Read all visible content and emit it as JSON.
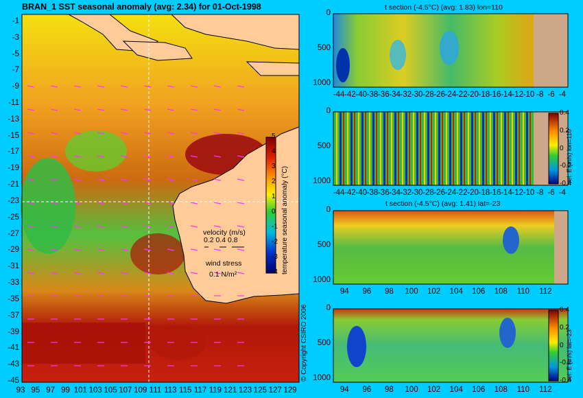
{
  "map": {
    "title": "BRAN_1  SST seasonal anomaly  (avg: 2.34)  for 01-Oct-1998",
    "lat_labels": [
      "-1",
      "-3",
      "-5",
      "-7",
      "-9",
      "-11",
      "-13",
      "-15",
      "-17",
      "-19",
      "-21",
      "-23",
      "-25",
      "-27",
      "-29",
      "-31",
      "-33",
      "-35",
      "-37",
      "-39",
      "-41",
      "-43",
      "-45"
    ],
    "lon_labels": [
      "93",
      "95",
      "97",
      "99",
      "101",
      "103",
      "105",
      "107",
      "109",
      "111",
      "113",
      "115",
      "117",
      "119",
      "121",
      "123",
      "125",
      "127",
      "129"
    ],
    "colorbar_ticks": [
      "5",
      "4",
      "3",
      "2",
      "1",
      "0",
      "-1",
      "-2",
      "-3",
      "-4"
    ],
    "colorbar_label": "temperature seasonal anomaly (°C)",
    "velocity_title": "velocity (m/s)",
    "velocity_values": "0.2 0.4 0.8",
    "wind_title": "wind stress",
    "wind_value": "0.1 N/m²",
    "copyright": "© Copyright CSIRO 2006"
  },
  "panel1": {
    "title": "t section (-4.5°C) (avg: 1.83) lon=110",
    "x_labels": [
      "-44",
      "-42",
      "-40",
      "-38",
      "-36",
      "-34",
      "-32",
      "-30",
      "-28",
      "-26",
      "-24",
      "-22",
      "-20",
      "-18",
      "-16",
      "-14",
      "-12",
      "-10",
      "-8",
      "-6",
      "-4"
    ],
    "y_labels": [
      "0",
      "500",
      "1000"
    ]
  },
  "panel2": {
    "title": "",
    "x_labels": [
      "-44",
      "-42",
      "-40",
      "-38",
      "-36",
      "-34",
      "-32",
      "-30",
      "-28",
      "-26",
      "-24",
      "-22",
      "-20",
      "-18",
      "-16",
      "-14",
      "-12",
      "-10",
      "-8",
      "-6",
      "-4"
    ],
    "y_labels": [
      "0",
      "500",
      "1000"
    ],
    "cb_ticks": [
      "0.4",
      "0.2",
      "0",
      "-0.2",
      "-0.4"
    ],
    "cb_label": "vel. E (m/s) lon=110"
  },
  "panel3": {
    "title": "t section (-4.5°C) (avg: 1.41) lat=-23",
    "x_labels": [
      "94",
      "96",
      "98",
      "100",
      "102",
      "104",
      "106",
      "108",
      "110",
      "112"
    ],
    "y_labels": [
      "0",
      "500",
      "1000"
    ]
  },
  "panel4": {
    "title": "",
    "x_labels": [
      "94",
      "96",
      "98",
      "100",
      "102",
      "104",
      "106",
      "108",
      "110",
      "112"
    ],
    "y_labels": [
      "0",
      "500",
      "1000"
    ],
    "cb_ticks": [
      "0.4",
      "0.2",
      "0",
      "-0.2",
      "-0.4"
    ],
    "cb_label": "vel. E (m/s) lat=-23"
  },
  "chart_data": [
    {
      "type": "heatmap",
      "title": "BRAN_1  SST seasonal anomaly  (avg: 2.34)  for 01-Oct-1998",
      "xlabel": "",
      "ylabel": "",
      "xlim": [
        93,
        130
      ],
      "ylim": [
        -45,
        0
      ],
      "colorbar": {
        "range": [
          -4,
          5
        ],
        "label": "temperature seasonal anomaly (°C)"
      }
    },
    {
      "type": "heatmap",
      "title": "t section (-4.5°C) (avg: 1.83) lon=110",
      "xlim": [
        -45,
        -3
      ],
      "ylim": [
        1050,
        0
      ]
    },
    {
      "type": "heatmap",
      "xlim": [
        -45,
        -3
      ],
      "ylim": [
        1050,
        0
      ],
      "colorbar": {
        "range": [
          -0.4,
          0.4
        ],
        "label": "vel. E (m/s) lon=110"
      }
    },
    {
      "type": "heatmap",
      "title": "t section (-4.5°C) (avg: 1.41) lat=-23",
      "xlim": [
        93,
        114
      ],
      "ylim": [
        1050,
        0
      ]
    },
    {
      "type": "heatmap",
      "xlim": [
        93,
        114
      ],
      "ylim": [
        1050,
        0
      ],
      "colorbar": {
        "range": [
          -0.4,
          0.4
        ],
        "label": "vel. E (m/s) lat=-23"
      }
    }
  ],
  "colors": {
    "background": "#00ccff",
    "land": "#ffcc99",
    "seafloor": "#cca888",
    "anomaly_high": "#b30000",
    "anomaly_mid": "#ffcc00",
    "anomaly_zero": "#33cc33",
    "anomaly_low": "#0000aa"
  }
}
